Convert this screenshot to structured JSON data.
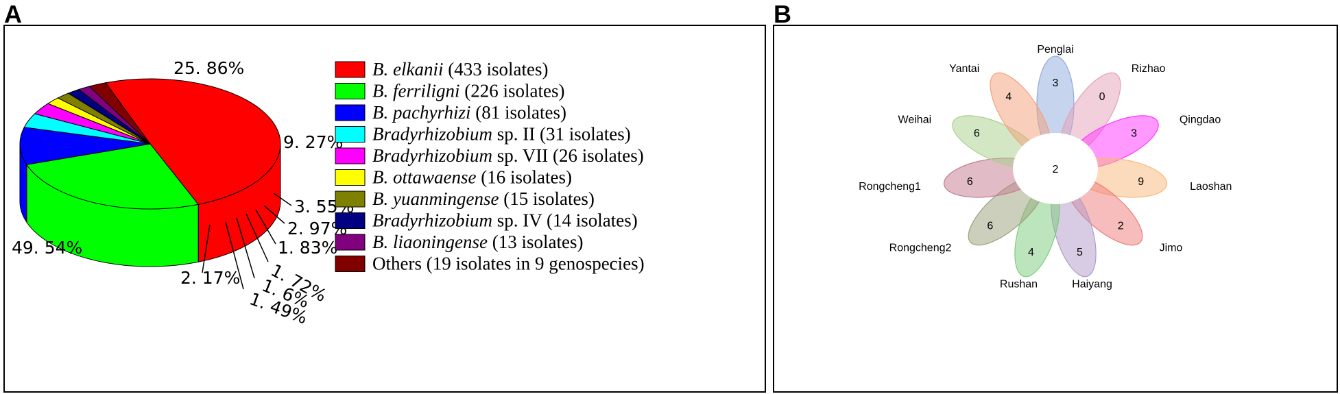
{
  "panels": {
    "a_letter": "A",
    "b_letter": "B"
  },
  "chart_data": [
    {
      "type": "pie",
      "style": "3d",
      "slices": [
        {
          "legend_species": "B. elkanii",
          "legend_rest": " (433 isolates)",
          "italic": true,
          "value": 49.54,
          "label": "49. 54%",
          "color": "#ff0000",
          "shade": "#c00000"
        },
        {
          "legend_species": "B. ferriligni",
          "legend_rest": " (226 isolates)",
          "italic": true,
          "value": 25.86,
          "label": "25. 86%",
          "color": "#00ff00",
          "shade": "#00b000"
        },
        {
          "legend_species": "B. pachyrhizi",
          "legend_rest": " (81 isolates)",
          "italic": true,
          "value": 9.27,
          "label": "9. 27%",
          "color": "#0000ff",
          "shade": "#0000a8"
        },
        {
          "legend_species": "Bradyrhizobium",
          "legend_rest": " sp. II (31 isolates)",
          "italic": true,
          "value": 3.55,
          "label": "3. 55%",
          "color": "#00ffff",
          "shade": "#00b8b8"
        },
        {
          "legend_species": "Bradyrhizobium",
          "legend_rest": " sp. VII (26 isolates)",
          "italic": true,
          "value": 2.97,
          "label": "2. 97%",
          "color": "#ff00ff",
          "shade": "#b800b8"
        },
        {
          "legend_species": "B. ottawaense",
          "legend_rest": " (16 isolates)",
          "italic": true,
          "value": 1.83,
          "label": "1. 83%",
          "color": "#ffff00",
          "shade": "#c8c800"
        },
        {
          "legend_species": "B. yuanmingense",
          "legend_rest": " (15 isolates)",
          "italic": true,
          "value": 1.72,
          "label": "1. 72%",
          "color": "#808000",
          "shade": "#5a5a00"
        },
        {
          "legend_species": "Bradyrhizobium",
          "legend_rest": " sp. IV (14 isolates)",
          "italic": true,
          "value": 1.6,
          "label": "1. 6%",
          "color": "#000080",
          "shade": "#000058"
        },
        {
          "legend_species": "B. liaoningense",
          "legend_rest": " (13 isolates)",
          "italic": true,
          "value": 1.49,
          "label": "1. 49%",
          "color": "#800080",
          "shade": "#580058"
        },
        {
          "legend_species": "",
          "legend_rest": "Others (19 isolates in 9 genospecies)",
          "italic": false,
          "value": 2.17,
          "label": "2. 17%",
          "color": "#800000",
          "shade": "#580000"
        }
      ]
    },
    {
      "type": "venn-flower",
      "core_value": "2",
      "petals": [
        {
          "name": "Penglai",
          "value": "3",
          "color": "#8faadc"
        },
        {
          "name": "Rizhao",
          "value": "0",
          "color": "#e3a0b8"
        },
        {
          "name": "Qingdao",
          "value": "3",
          "color": "#ff33ff"
        },
        {
          "name": "Laoshan",
          "value": "9",
          "color": "#f7b87a"
        },
        {
          "name": "Jimo",
          "value": "2",
          "color": "#ef7a7a"
        },
        {
          "name": "Haiyang",
          "value": "5",
          "color": "#b09ac8"
        },
        {
          "name": "Rushan",
          "value": "4",
          "color": "#7ccc7c"
        },
        {
          "name": "Rongcheng2",
          "value": "6",
          "color": "#9aa07a"
        },
        {
          "name": "Rongcheng1",
          "value": "6",
          "color": "#c47a90"
        },
        {
          "name": "Weihai",
          "value": "6",
          "color": "#a8d08a"
        },
        {
          "name": "Yantai",
          "value": "4",
          "color": "#f4a07a"
        }
      ]
    }
  ]
}
